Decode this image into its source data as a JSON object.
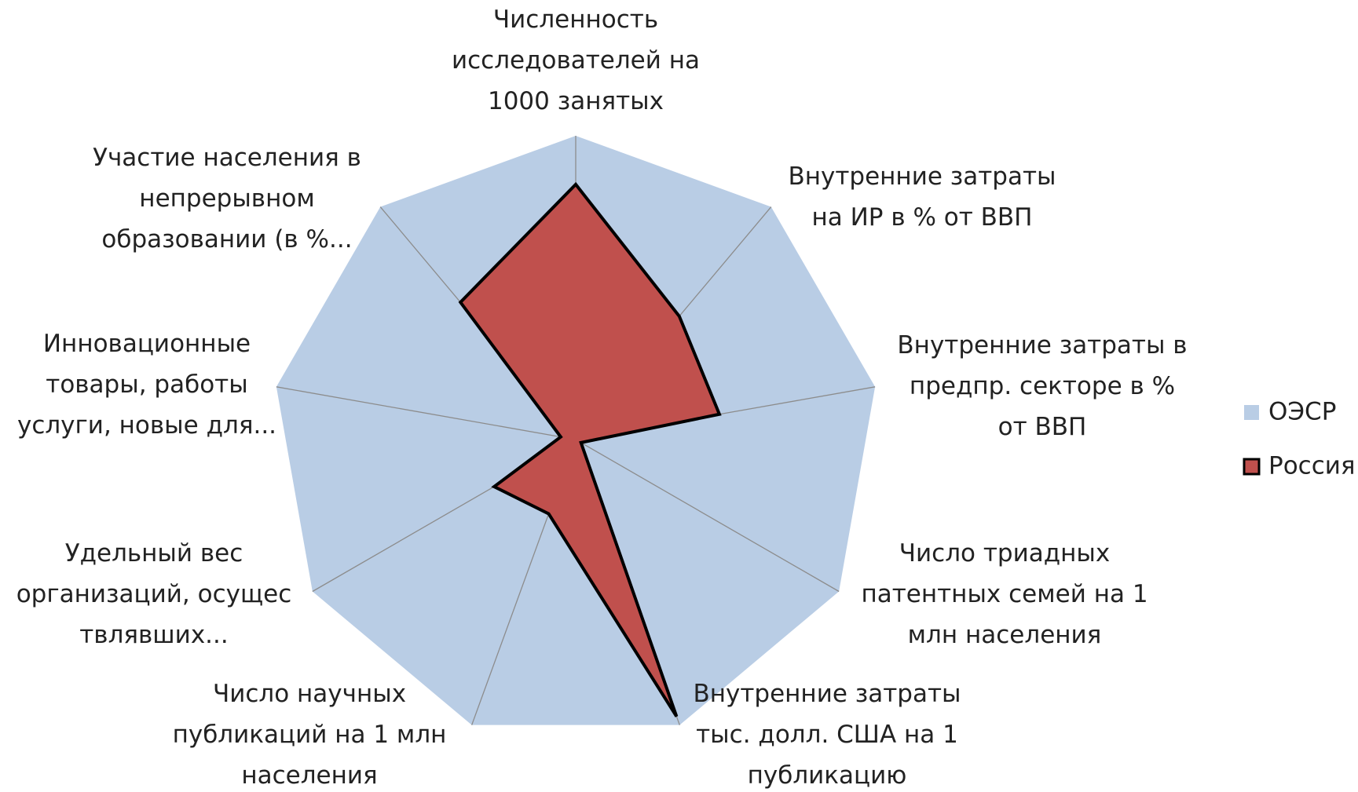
{
  "chart_data": {
    "type": "radar",
    "categories": [
      "Численность\nисследователей на\n1000 занятых",
      "Внутренние затраты\nна ИР в % от ВВП",
      "Внутренние затраты в\nпредпр. секторе в %\nот ВВП",
      "Число триадных\nпатентных семей на 1\nмлн населения",
      "Внутренние затраты\nтыс. долл. США на 1\nпубликацию",
      "Число научных\nпубликаций на 1 млн\nнаселения",
      "Удельный вес\nорганизаций, осущес\nтвлявших...",
      "Инновационные\nтовары, работы\nуслуги, новые для...",
      "Участие населения в\nнепрерывном\nобразовании (в %..."
    ],
    "rlim": [
      0,
      1
    ],
    "series": [
      {
        "name": "ОЭСР",
        "color": "#b9cde5",
        "values": [
          1,
          1,
          1,
          1,
          1,
          1,
          1,
          1,
          1
        ]
      },
      {
        "name": "Россия",
        "color": "#c0504d",
        "values": [
          0.84,
          0.53,
          0.48,
          0.02,
          0.97,
          0.26,
          0.31,
          0.05,
          0.59
        ]
      }
    ],
    "legend": "right"
  }
}
